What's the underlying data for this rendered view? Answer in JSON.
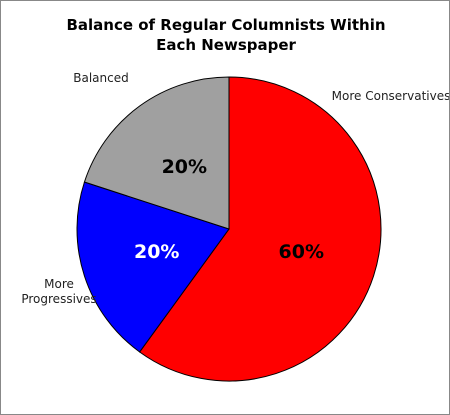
{
  "chart_data": {
    "type": "pie",
    "title": "Balance of Regular Columnists Within Each Newspaper",
    "categories": [
      "More Conservatives",
      "More Progressives",
      "Balanced"
    ],
    "values": [
      60,
      20,
      20
    ],
    "value_labels": [
      "60%",
      "20%",
      "20%"
    ],
    "colors": [
      "#ff0000",
      "#0000ff",
      "#a0a0a0"
    ]
  }
}
